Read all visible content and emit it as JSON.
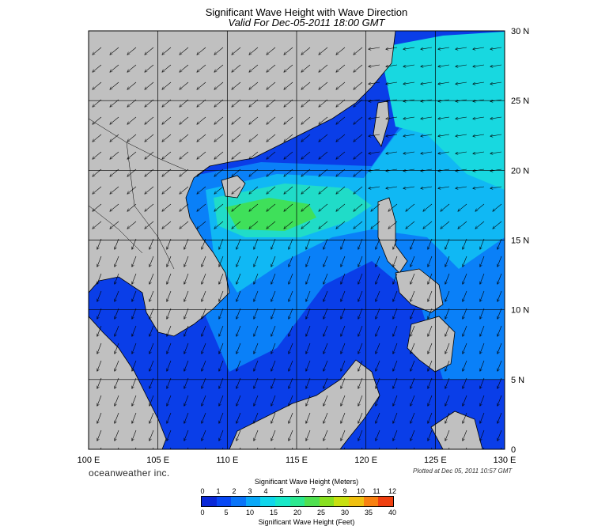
{
  "title": "Significant Wave Height with Wave Direction",
  "subtitle": "Valid For Dec-05-2011 18:00 GMT",
  "map": {
    "lon_labels": [
      "100 E",
      "105 E",
      "110 E",
      "115 E",
      "120 E",
      "125 E",
      "130 E"
    ],
    "lat_labels": [
      "0",
      "5 N",
      "10 N",
      "15 N",
      "20 N",
      "25 N",
      "30 N"
    ],
    "lon_range": [
      100,
      130
    ],
    "lat_range": [
      0,
      30
    ],
    "land_color": "#c0c0c0",
    "peak_region_color": "#3fe05a"
  },
  "brand": "oceanweather inc.",
  "plotted": "Plotted at Dec 05, 2011 10:57 GMT",
  "legend": {
    "meters_title": "Significant Wave Height (Meters)",
    "feet_title": "Significant Wave Height (Feet)",
    "meter_ticks": [
      "0",
      "1",
      "2",
      "3",
      "4",
      "5",
      "6",
      "7",
      "8",
      "9",
      "10",
      "11",
      "12"
    ],
    "feet_ticks": [
      "0",
      "5",
      "10",
      "15",
      "20",
      "25",
      "30",
      "35",
      "40"
    ],
    "colors": [
      "#0a28d8",
      "#0848f4",
      "#0a74f8",
      "#0aa8f8",
      "#10d6ec",
      "#18e8c8",
      "#2ce890",
      "#50e050",
      "#88e020",
      "#c8e010",
      "#f0c010",
      "#f88010",
      "#f04010"
    ]
  }
}
